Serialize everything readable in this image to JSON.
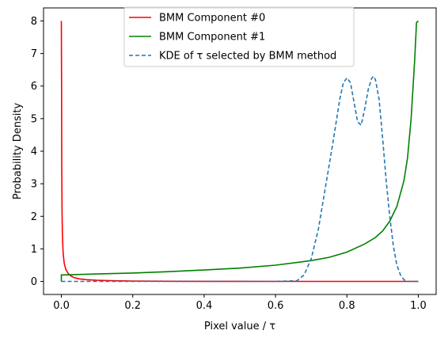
{
  "chart_data": {
    "type": "line",
    "title": "",
    "xlabel": "Pixel value / τ",
    "ylabel": "Probability Density",
    "xlim": [
      -0.05,
      1.05
    ],
    "ylim": [
      -0.4,
      8.4
    ],
    "xticks": [
      0.0,
      0.2,
      0.4,
      0.6,
      0.8,
      1.0
    ],
    "xtick_labels": [
      "0.0",
      "0.2",
      "0.4",
      "0.6",
      "0.8",
      "1.0"
    ],
    "yticks": [
      0,
      1,
      2,
      3,
      4,
      5,
      6,
      7,
      8
    ],
    "ytick_labels": [
      "0",
      "1",
      "2",
      "3",
      "4",
      "5",
      "6",
      "7",
      "8"
    ],
    "grid": false,
    "legend_position": "upper-center",
    "series": [
      {
        "name": "BMM Component #0",
        "color": "#ff0000",
        "style": "solid",
        "x": [
          0.0,
          0.0005,
          0.001,
          0.002,
          0.003,
          0.005,
          0.008,
          0.012,
          0.018,
          0.025,
          0.035,
          0.05,
          0.07,
          0.1,
          0.15,
          0.2,
          0.3,
          0.4,
          0.5,
          0.6,
          0.7,
          0.8,
          0.9,
          0.95,
          1.0
        ],
        "y": [
          8.0,
          6.0,
          3.6,
          2.1,
          1.4,
          0.85,
          0.55,
          0.38,
          0.26,
          0.18,
          0.12,
          0.08,
          0.055,
          0.035,
          0.02,
          0.013,
          0.007,
          0.004,
          0.003,
          0.002,
          0.001,
          0.001,
          0.0,
          0.0,
          0.0
        ]
      },
      {
        "name": "BMM Component #1",
        "color": "#008000",
        "style": "solid",
        "x": [
          0.0,
          0.0,
          0.01,
          0.1,
          0.2,
          0.3,
          0.4,
          0.5,
          0.6,
          0.7,
          0.75,
          0.8,
          0.85,
          0.88,
          0.9,
          0.92,
          0.94,
          0.96,
          0.97,
          0.98,
          0.99,
          0.995,
          1.0
        ],
        "y": [
          0.0,
          0.2,
          0.2,
          0.23,
          0.26,
          0.3,
          0.35,
          0.41,
          0.5,
          0.64,
          0.74,
          0.9,
          1.15,
          1.35,
          1.55,
          1.85,
          2.3,
          3.1,
          3.8,
          5.0,
          6.8,
          7.95,
          8.0
        ]
      },
      {
        "name": "KDE of τ selected by BMM method",
        "color": "#1f77b4",
        "style": "dashed",
        "x": [
          0.0,
          0.6,
          0.66,
          0.68,
          0.7,
          0.72,
          0.74,
          0.76,
          0.78,
          0.79,
          0.8,
          0.81,
          0.82,
          0.83,
          0.84,
          0.85,
          0.86,
          0.87,
          0.875,
          0.88,
          0.89,
          0.9,
          0.91,
          0.92,
          0.93,
          0.94,
          0.95,
          0.96,
          0.97,
          1.0
        ],
        "y": [
          0.0,
          0.0,
          0.02,
          0.2,
          0.7,
          1.6,
          2.9,
          4.2,
          5.6,
          6.1,
          6.25,
          6.1,
          5.5,
          4.9,
          4.8,
          5.3,
          5.9,
          6.25,
          6.3,
          6.2,
          5.6,
          4.4,
          3.1,
          2.0,
          1.1,
          0.5,
          0.2,
          0.05,
          0.0,
          0.0
        ]
      }
    ]
  }
}
